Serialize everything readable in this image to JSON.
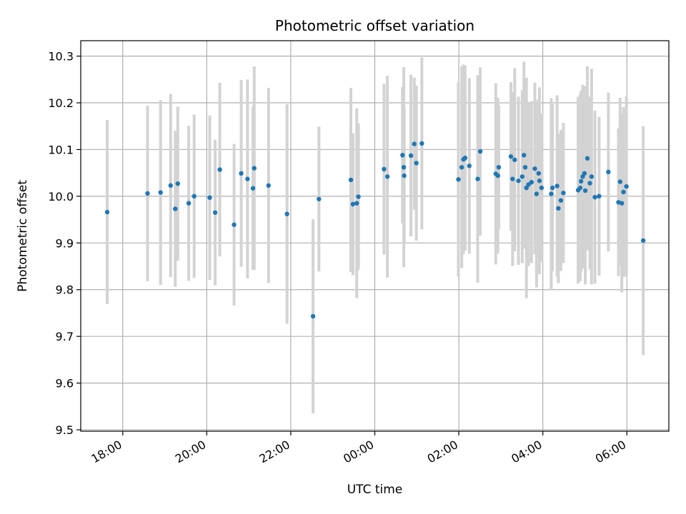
{
  "chart_data": {
    "type": "scatter",
    "title": "Photometric offset variation",
    "xlabel": "UTC time",
    "ylabel": "Photometric offset",
    "x_unit": "hours since 18:00 UTC",
    "xlim": [
      -1.0,
      13.0
    ],
    "ylim": [
      9.497,
      10.333
    ],
    "grid": true,
    "x_ticks": [
      {
        "value": 0,
        "label": "18:00"
      },
      {
        "value": 2,
        "label": "20:00"
      },
      {
        "value": 4,
        "label": "22:00"
      },
      {
        "value": 6,
        "label": "00:00"
      },
      {
        "value": 8,
        "label": "02:00"
      },
      {
        "value": 10,
        "label": "04:00"
      },
      {
        "value": 12,
        "label": "06:00"
      }
    ],
    "y_ticks": [
      {
        "value": 9.5,
        "label": "9.5"
      },
      {
        "value": 9.6,
        "label": "9.6"
      },
      {
        "value": 9.7,
        "label": "9.7"
      },
      {
        "value": 9.8,
        "label": "9.8"
      },
      {
        "value": 9.9,
        "label": "9.9"
      },
      {
        "value": 10.0,
        "label": "10.0"
      },
      {
        "value": 10.1,
        "label": "10.1"
      },
      {
        "value": 10.2,
        "label": "10.2"
      },
      {
        "value": 10.3,
        "label": "10.3"
      }
    ],
    "colors": {
      "point": "#1f77b4",
      "errorbar": "#d3d3d3",
      "grid": "#b0b0b0",
      "axes": "#000000"
    },
    "series": [
      {
        "name": "Photometric offset",
        "x": [
          -0.37,
          0.59,
          0.9,
          1.14,
          1.25,
          1.31,
          1.57,
          1.7,
          2.07,
          2.2,
          2.31,
          2.65,
          2.82,
          2.97,
          3.1,
          3.13,
          3.47,
          3.91,
          4.53,
          4.67,
          5.43,
          5.48,
          5.57,
          5.61,
          6.22,
          6.3,
          6.66,
          6.69,
          6.7,
          6.86,
          6.94,
          6.99,
          7.12,
          7.99,
          8.07,
          8.11,
          8.15,
          8.25,
          8.45,
          8.51,
          8.88,
          8.93,
          8.95,
          9.24,
          9.28,
          9.33,
          9.42,
          9.51,
          9.55,
          9.58,
          9.61,
          9.66,
          9.73,
          9.81,
          9.85,
          9.9,
          9.92,
          9.97,
          10.2,
          10.23,
          10.34,
          10.37,
          10.43,
          10.49,
          10.84,
          10.89,
          10.91,
          10.95,
          10.99,
          11.01,
          11.06,
          11.12,
          11.16,
          11.24,
          11.34,
          11.56,
          11.8,
          11.84,
          11.88,
          11.92,
          11.99,
          12.39
        ],
        "y": [
          9.966,
          10.006,
          10.008,
          10.023,
          9.973,
          10.027,
          9.985,
          10.0,
          9.997,
          9.965,
          10.057,
          9.939,
          10.049,
          10.037,
          10.017,
          10.06,
          10.023,
          9.962,
          9.743,
          9.994,
          10.035,
          9.983,
          9.985,
          9.999,
          10.058,
          10.042,
          10.088,
          10.062,
          10.044,
          10.087,
          10.112,
          10.071,
          10.113,
          10.036,
          10.062,
          10.079,
          10.082,
          10.065,
          10.037,
          10.096,
          10.048,
          10.044,
          10.062,
          10.085,
          10.037,
          10.078,
          10.033,
          10.042,
          10.088,
          10.062,
          10.018,
          10.025,
          10.03,
          10.059,
          10.005,
          10.049,
          10.033,
          10.018,
          10.005,
          10.018,
          10.022,
          9.974,
          9.991,
          10.007,
          10.013,
          10.018,
          10.032,
          10.042,
          10.049,
          10.012,
          10.081,
          10.028,
          10.042,
          9.998,
          10.0,
          10.052,
          9.987,
          10.031,
          9.985,
          10.009,
          10.021,
          9.905
        ],
        "yerr": [
          0.197,
          0.188,
          0.198,
          0.196,
          0.167,
          0.165,
          0.166,
          0.175,
          0.176,
          0.156,
          0.186,
          0.173,
          0.2,
          0.213,
          0.175,
          0.218,
          0.209,
          0.235,
          0.208,
          0.155,
          0.197,
          0.152,
          0.203,
          0.157,
          0.183,
          0.216,
          0.146,
          0.214,
          0.146,
          0.173,
          0.142,
          0.166,
          0.184,
          0.208,
          0.216,
          0.203,
          0.198,
          0.188,
          0.222,
          0.18,
          0.194,
          0.167,
          0.132,
          0.159,
          0.186,
          0.196,
          0.18,
          0.185,
          0.2,
          0.173,
          0.236,
          0.175,
          0.173,
          0.184,
          0.2,
          0.159,
          0.2,
          0.159,
          0.205,
          0.179,
          0.194,
          0.16,
          0.151,
          0.15,
          0.2,
          0.2,
          0.194,
          0.197,
          0.187,
          0.201,
          0.197,
          0.185,
          0.231,
          0.185,
          0.17,
          0.17,
          0.158,
          0.18,
          0.191,
          0.182,
          0.193,
          0.245
        ]
      }
    ]
  }
}
